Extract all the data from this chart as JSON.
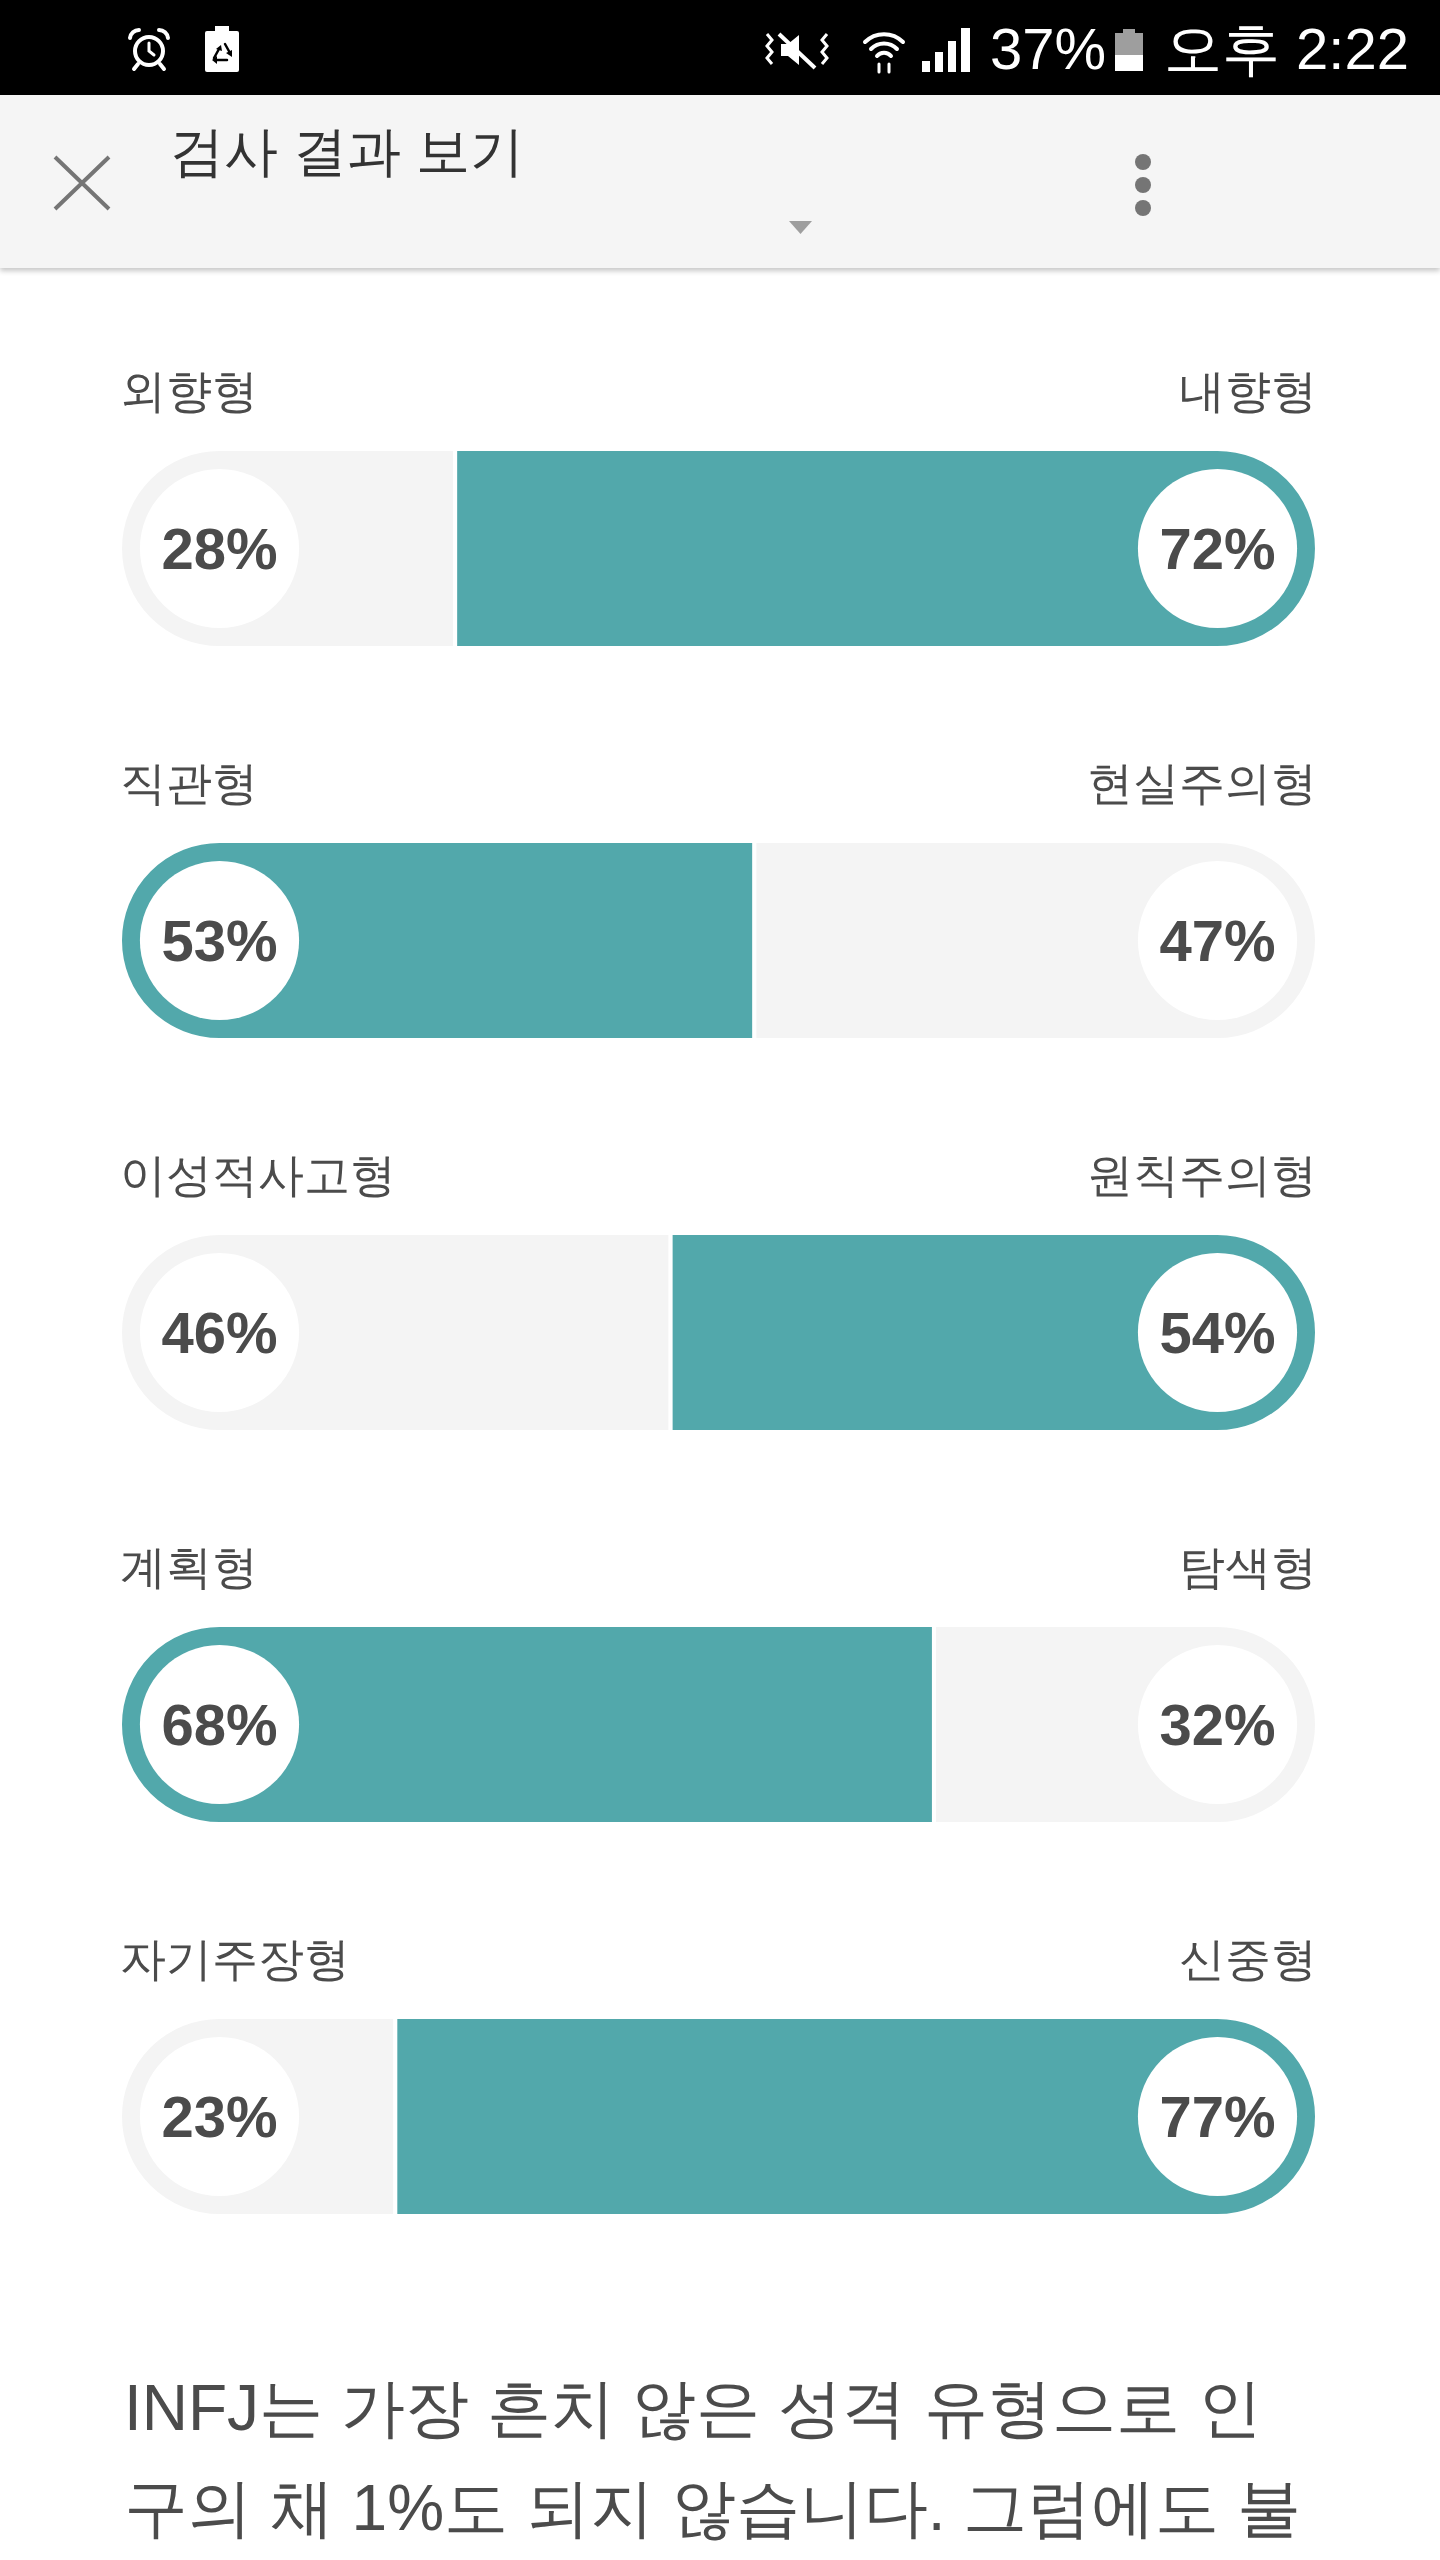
{
  "chart_data": {
    "type": "bar",
    "orientation": "horizontal",
    "stacked": true,
    "categories": [
      "외향형",
      "직관형",
      "이성적사고형",
      "계획형",
      "자기주장형"
    ],
    "y2_categories": [
      "내향형",
      "현실주의형",
      "원칙주의형",
      "탐색형",
      "신중형"
    ],
    "series": [
      {
        "colors": [
          "#f4f4f4",
          "#52a8ab",
          "#f4f4f4",
          "#52a8ab",
          "#f4f4f4"
        ],
        "values": [
          28,
          53,
          46,
          68,
          23
        ],
        "value_labels": [
          "28%",
          "53%",
          "46%",
          "68%",
          "23%"
        ]
      },
      {
        "colors": [
          "#52a8ab",
          "#f4f4f4",
          "#52a8ab",
          "#f4f4f4",
          "#52a8ab"
        ],
        "values": [
          72,
          47,
          54,
          32,
          77
        ],
        "value_labels": [
          "72%",
          "47%",
          "54%",
          "32%",
          "77%"
        ]
      }
    ],
    "tick_labels": "y",
    "annotations": [
      "37%",
      "오후 2:22",
      "검사 결과 보기",
      "INFJ는 가장 흔치 않은 성격 유형으로 인구의 채 1%도 되지 않습니다. 그럼에도 불"
    ]
  }
}
